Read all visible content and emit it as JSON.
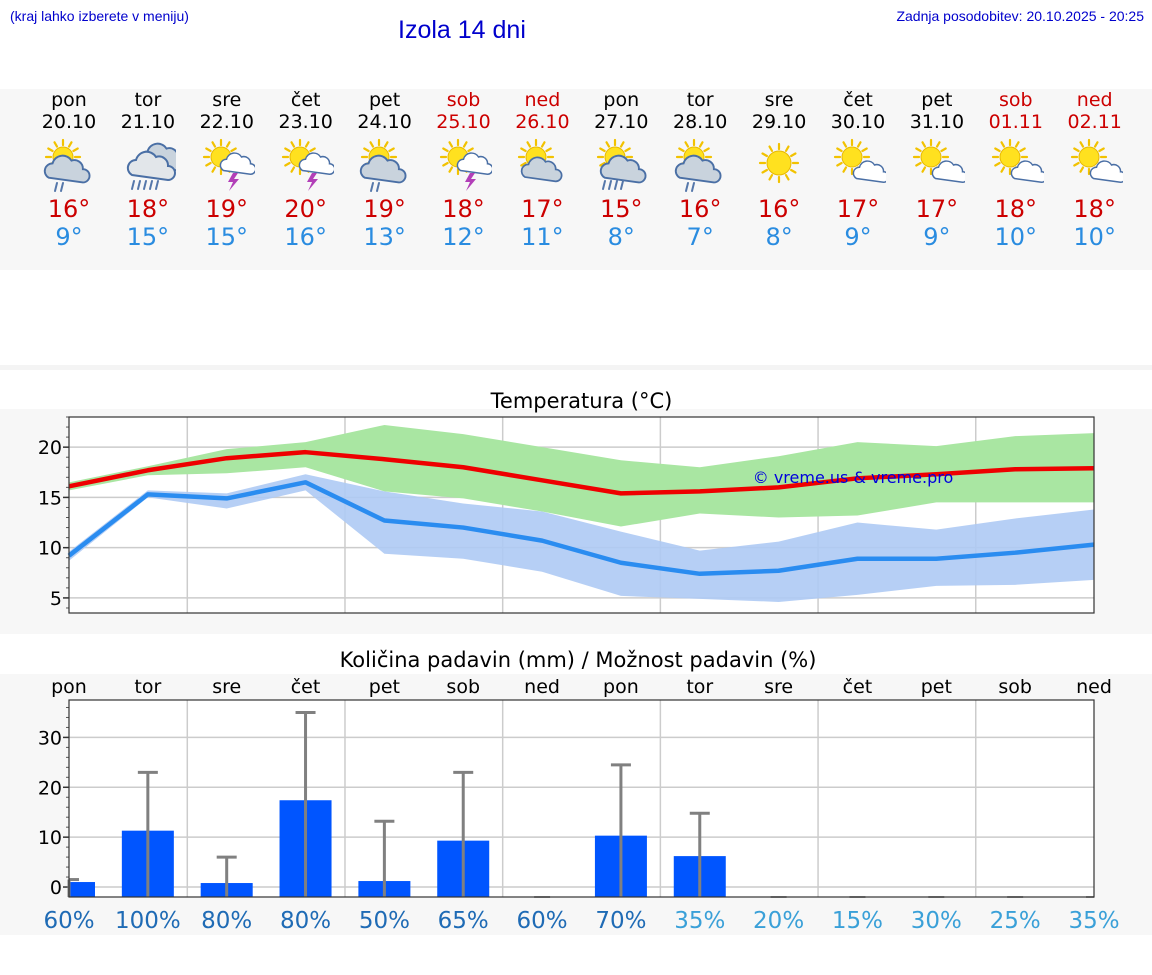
{
  "header": {
    "note": "(kraj lahko izberete v meniju)",
    "title": "Izola 14 dni",
    "updated": "Zadnja posodobitev: 20.10.2025 - 20:25"
  },
  "days": [
    {
      "name": "pon",
      "date": "20.10",
      "weekend": false,
      "icon": "sun-cloud-rain-icon",
      "max": "16°",
      "min": "9°"
    },
    {
      "name": "tor",
      "date": "21.10",
      "weekend": false,
      "icon": "cloud-heavy-rain-icon",
      "max": "18°",
      "min": "15°"
    },
    {
      "name": "sre",
      "date": "22.10",
      "weekend": false,
      "icon": "sun-cloud-thunder-icon",
      "max": "19°",
      "min": "15°"
    },
    {
      "name": "čet",
      "date": "23.10",
      "weekend": false,
      "icon": "sun-cloud-thunder-icon",
      "max": "20°",
      "min": "16°"
    },
    {
      "name": "pet",
      "date": "24.10",
      "weekend": false,
      "icon": "sun-cloud-rain-icon",
      "max": "19°",
      "min": "13°"
    },
    {
      "name": "sob",
      "date": "25.10",
      "weekend": true,
      "icon": "sun-cloud-thunder-icon",
      "max": "18°",
      "min": "12°"
    },
    {
      "name": "ned",
      "date": "26.10",
      "weekend": true,
      "icon": "sun-cloud-icon",
      "max": "17°",
      "min": "11°"
    },
    {
      "name": "pon",
      "date": "27.10",
      "weekend": false,
      "icon": "sun-cloud-heavy-rain-icon",
      "max": "15°",
      "min": "8°"
    },
    {
      "name": "tor",
      "date": "28.10",
      "weekend": false,
      "icon": "sun-cloud-rain-icon",
      "max": "16°",
      "min": "7°"
    },
    {
      "name": "sre",
      "date": "29.10",
      "weekend": false,
      "icon": "sun-icon",
      "max": "16°",
      "min": "8°"
    },
    {
      "name": "čet",
      "date": "30.10",
      "weekend": false,
      "icon": "sun-small-cloud-icon",
      "max": "17°",
      "min": "9°"
    },
    {
      "name": "pet",
      "date": "31.10",
      "weekend": false,
      "icon": "sun-small-cloud-icon",
      "max": "17°",
      "min": "9°"
    },
    {
      "name": "sob",
      "date": "01.11",
      "weekend": true,
      "icon": "sun-small-cloud-icon",
      "max": "18°",
      "min": "10°"
    },
    {
      "name": "ned",
      "date": "02.11",
      "weekend": true,
      "icon": "sun-small-cloud-icon",
      "max": "18°",
      "min": "10°"
    }
  ],
  "colors": {
    "max_line": "#ee0000",
    "min_line": "#2a8cf0",
    "max_band": "#a9e6a2",
    "min_band": "#aecaf4",
    "bar": "#0055ff",
    "errorbar": "#808080",
    "title_blue": "#0000cc",
    "weekend": "#cc0000",
    "pct_dark": "#1f6bb5",
    "pct_light": "#3aa0d8"
  },
  "chart_data": [
    {
      "type": "line",
      "title": "Temperatura (°C)",
      "watermark": "© vreme.us & vreme.pro",
      "ylim": [
        3.5,
        23
      ],
      "yticks": [
        5,
        10,
        15,
        20
      ],
      "x": [
        0,
        1,
        2,
        3,
        4,
        5,
        6,
        7,
        8,
        9,
        10,
        11,
        12,
        13
      ],
      "series": [
        {
          "role": "max",
          "values": [
            16.1,
            17.7,
            18.9,
            19.5,
            18.8,
            18.0,
            16.7,
            15.4,
            15.6,
            16.0,
            16.9,
            17.3,
            17.8,
            17.9
          ],
          "low": [
            15.7,
            17.2,
            17.4,
            18.0,
            15.6,
            14.9,
            13.6,
            12.1,
            13.4,
            13.0,
            13.2,
            14.5,
            14.5,
            14.5
          ],
          "high": [
            16.5,
            18.1,
            19.8,
            20.5,
            22.2,
            21.3,
            20.0,
            18.7,
            18.0,
            19.1,
            20.5,
            20.1,
            21.1,
            21.4
          ]
        },
        {
          "role": "min",
          "values": [
            9.2,
            15.3,
            14.9,
            16.5,
            12.7,
            12.0,
            10.7,
            8.5,
            7.4,
            7.7,
            8.9,
            8.9,
            9.5,
            10.3
          ],
          "low": [
            8.7,
            15.0,
            13.9,
            15.7,
            9.4,
            8.9,
            7.6,
            5.2,
            4.9,
            4.6,
            5.3,
            6.2,
            6.3,
            6.8
          ],
          "high": [
            9.6,
            15.7,
            15.4,
            17.3,
            15.6,
            14.4,
            13.6,
            11.6,
            9.7,
            10.6,
            12.5,
            11.8,
            12.9,
            13.8
          ]
        }
      ]
    },
    {
      "type": "bar",
      "title": "Količina padavin (mm) / Možnost padavin (%)",
      "ylim": [
        -2,
        37.5
      ],
      "yticks": [
        0,
        10,
        20,
        30
      ],
      "categories": [
        "pon",
        "tor",
        "sre",
        "čet",
        "pet",
        "sob",
        "ned",
        "pon",
        "tor",
        "sre",
        "čet",
        "pet",
        "sob",
        "ned"
      ],
      "values": [
        1.0,
        11.3,
        0.8,
        17.4,
        1.2,
        9.3,
        0,
        10.3,
        6.2,
        0,
        0,
        0,
        0,
        0
      ],
      "error_high": [
        1.5,
        23.0,
        6.0,
        35.0,
        13.2,
        23.0,
        0,
        24.5,
        14.8,
        0,
        0,
        0,
        0,
        0
      ],
      "probability": [
        "60%",
        "100%",
        "80%",
        "80%",
        "50%",
        "65%",
        "60%",
        "70%",
        "35%",
        "20%",
        "15%",
        "30%",
        "25%",
        "35%"
      ],
      "probability_tone": [
        "dark",
        "dark",
        "dark",
        "dark",
        "dark",
        "dark",
        "dark",
        "dark",
        "light",
        "light",
        "light",
        "light",
        "light",
        "light"
      ]
    }
  ]
}
